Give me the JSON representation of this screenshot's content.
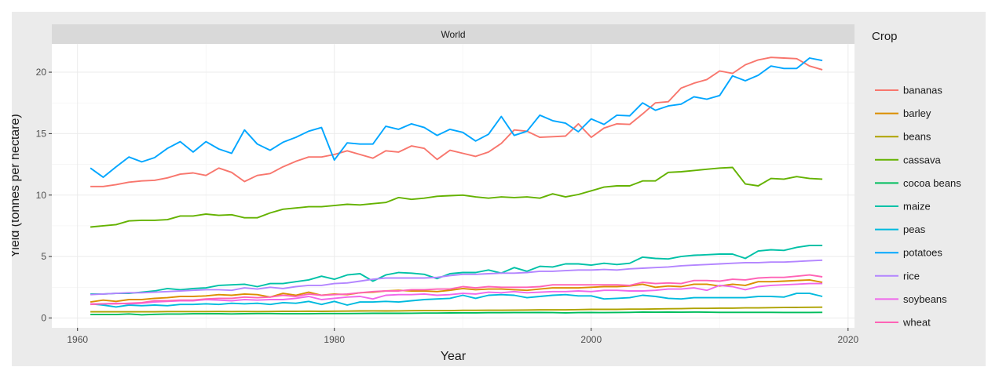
{
  "chart_data": {
    "type": "line",
    "facet_label": "World",
    "xlabel": "Year",
    "ylabel": "Yield (tonnes per hectare)",
    "xlim": [
      1958,
      2020.5
    ],
    "ylim": [
      -0.8,
      22.3
    ],
    "x_ticks": [
      1960,
      1980,
      2000,
      2020
    ],
    "y_ticks": [
      0,
      5,
      10,
      15,
      20
    ],
    "grid": true,
    "legend_title": "Crop",
    "legend_position": "right",
    "x": [
      1961,
      1962,
      1963,
      1964,
      1965,
      1966,
      1967,
      1968,
      1969,
      1970,
      1971,
      1972,
      1973,
      1974,
      1975,
      1976,
      1977,
      1978,
      1979,
      1980,
      1981,
      1982,
      1983,
      1984,
      1985,
      1986,
      1987,
      1988,
      1989,
      1990,
      1991,
      1992,
      1993,
      1994,
      1995,
      1996,
      1997,
      1998,
      1999,
      2000,
      2001,
      2002,
      2003,
      2004,
      2005,
      2006,
      2007,
      2008,
      2009,
      2010,
      2011,
      2012,
      2013,
      2014,
      2015,
      2016,
      2017,
      2018
    ],
    "series": [
      {
        "name": "bananas",
        "color": "#F8766D",
        "values": [
          10.7,
          10.7,
          10.85,
          11.05,
          11.15,
          11.2,
          11.4,
          11.7,
          11.8,
          11.6,
          12.2,
          11.85,
          11.1,
          11.6,
          11.75,
          12.3,
          12.75,
          13.1,
          13.1,
          13.3,
          13.6,
          13.3,
          13.0,
          13.6,
          13.5,
          14.0,
          13.8,
          12.9,
          13.65,
          13.4,
          13.15,
          13.5,
          14.2,
          15.3,
          15.2,
          14.7,
          14.75,
          14.8,
          15.8,
          14.7,
          15.45,
          15.8,
          15.75,
          16.6,
          17.5,
          17.6,
          18.7,
          19.1,
          19.4,
          20.1,
          19.9,
          20.6,
          21.0,
          21.2,
          21.15,
          21.1,
          20.5,
          20.2
        ]
      },
      {
        "name": "barley",
        "color": "#DB8E00",
        "values": [
          1.3,
          1.45,
          1.35,
          1.5,
          1.5,
          1.6,
          1.65,
          1.75,
          1.75,
          1.8,
          1.9,
          1.85,
          1.95,
          1.9,
          1.7,
          2.0,
          1.85,
          2.1,
          1.85,
          1.95,
          1.9,
          2.05,
          2.1,
          2.2,
          2.25,
          2.2,
          2.2,
          2.15,
          2.25,
          2.4,
          2.3,
          2.35,
          2.35,
          2.3,
          2.25,
          2.35,
          2.45,
          2.45,
          2.45,
          2.5,
          2.55,
          2.55,
          2.6,
          2.75,
          2.5,
          2.6,
          2.55,
          2.75,
          2.75,
          2.6,
          2.75,
          2.65,
          2.95,
          2.95,
          3.0,
          3.05,
          3.1,
          2.9
        ]
      },
      {
        "name": "beans",
        "color": "#AEA200",
        "values": [
          0.5,
          0.5,
          0.5,
          0.5,
          0.5,
          0.5,
          0.52,
          0.52,
          0.52,
          0.52,
          0.53,
          0.52,
          0.53,
          0.52,
          0.53,
          0.54,
          0.54,
          0.55,
          0.54,
          0.55,
          0.56,
          0.57,
          0.58,
          0.57,
          0.58,
          0.59,
          0.6,
          0.6,
          0.6,
          0.62,
          0.62,
          0.63,
          0.63,
          0.64,
          0.65,
          0.66,
          0.66,
          0.66,
          0.68,
          0.7,
          0.7,
          0.7,
          0.72,
          0.72,
          0.74,
          0.75,
          0.76,
          0.78,
          0.78,
          0.8,
          0.8,
          0.82,
          0.82,
          0.84,
          0.85,
          0.86,
          0.87,
          0.88
        ]
      },
      {
        "name": "cassava",
        "color": "#64B200",
        "values": [
          7.4,
          7.5,
          7.6,
          7.9,
          7.95,
          7.95,
          8.0,
          8.3,
          8.3,
          8.45,
          8.35,
          8.4,
          8.15,
          8.15,
          8.55,
          8.85,
          8.95,
          9.05,
          9.05,
          9.15,
          9.25,
          9.2,
          9.3,
          9.4,
          9.8,
          9.65,
          9.75,
          9.9,
          9.95,
          10.0,
          9.85,
          9.75,
          9.85,
          9.8,
          9.85,
          9.75,
          10.1,
          9.85,
          10.05,
          10.35,
          10.65,
          10.75,
          10.75,
          11.15,
          11.15,
          11.85,
          11.9,
          12.0,
          12.1,
          12.2,
          12.25,
          10.9,
          10.75,
          11.35,
          11.3,
          11.5,
          11.35,
          11.3
        ]
      },
      {
        "name": "cocoa beans",
        "color": "#00BD5C",
        "values": [
          0.28,
          0.28,
          0.28,
          0.33,
          0.26,
          0.3,
          0.32,
          0.32,
          0.34,
          0.34,
          0.35,
          0.33,
          0.35,
          0.36,
          0.36,
          0.34,
          0.34,
          0.34,
          0.36,
          0.36,
          0.36,
          0.37,
          0.38,
          0.38,
          0.38,
          0.39,
          0.4,
          0.4,
          0.41,
          0.42,
          0.42,
          0.43,
          0.43,
          0.44,
          0.44,
          0.45,
          0.44,
          0.42,
          0.44,
          0.45,
          0.44,
          0.45,
          0.46,
          0.48,
          0.47,
          0.48,
          0.47,
          0.48,
          0.47,
          0.46,
          0.46,
          0.46,
          0.46,
          0.46,
          0.45,
          0.45,
          0.45,
          0.46
        ]
      },
      {
        "name": "maize",
        "color": "#00C1A7",
        "values": [
          1.95,
          1.95,
          2.0,
          2.0,
          2.1,
          2.2,
          2.4,
          2.3,
          2.4,
          2.45,
          2.65,
          2.7,
          2.75,
          2.55,
          2.8,
          2.8,
          2.95,
          3.1,
          3.4,
          3.15,
          3.5,
          3.6,
          3.0,
          3.5,
          3.7,
          3.65,
          3.55,
          3.2,
          3.6,
          3.7,
          3.7,
          3.9,
          3.65,
          4.1,
          3.8,
          4.2,
          4.15,
          4.4,
          4.4,
          4.3,
          4.45,
          4.35,
          4.45,
          4.95,
          4.85,
          4.8,
          5.0,
          5.1,
          5.15,
          5.2,
          5.2,
          4.85,
          5.45,
          5.55,
          5.5,
          5.75,
          5.9,
          5.9
        ]
      },
      {
        "name": "peas",
        "color": "#00BADE",
        "values": [
          1.15,
          1.05,
          0.9,
          1.05,
          1.0,
          1.05,
          1.0,
          1.1,
          1.1,
          1.15,
          1.1,
          1.2,
          1.15,
          1.2,
          1.1,
          1.25,
          1.2,
          1.35,
          1.1,
          1.35,
          1.05,
          1.3,
          1.3,
          1.35,
          1.3,
          1.4,
          1.5,
          1.55,
          1.6,
          1.85,
          1.6,
          1.85,
          1.9,
          1.85,
          1.65,
          1.75,
          1.85,
          1.9,
          1.8,
          1.8,
          1.55,
          1.6,
          1.65,
          1.85,
          1.75,
          1.6,
          1.55,
          1.65,
          1.65,
          1.65,
          1.65,
          1.65,
          1.75,
          1.75,
          1.7,
          2.0,
          2.0,
          1.75
        ]
      },
      {
        "name": "potatoes",
        "color": "#00A6FF",
        "values": [
          12.2,
          11.45,
          12.3,
          13.1,
          12.7,
          13.05,
          13.8,
          14.35,
          13.5,
          14.35,
          13.75,
          13.4,
          15.3,
          14.15,
          13.65,
          14.3,
          14.7,
          15.2,
          15.5,
          12.85,
          14.25,
          14.15,
          14.15,
          15.6,
          15.35,
          15.8,
          15.5,
          14.85,
          15.35,
          15.1,
          14.4,
          14.95,
          16.4,
          14.85,
          15.2,
          16.5,
          16.05,
          15.85,
          15.15,
          16.2,
          15.75,
          16.5,
          16.45,
          17.5,
          16.9,
          17.25,
          17.4,
          18.0,
          17.8,
          18.1,
          19.7,
          19.3,
          19.75,
          20.5,
          20.3,
          20.3,
          21.15,
          20.95
        ]
      },
      {
        "name": "rice",
        "color": "#B385FF",
        "values": [
          1.9,
          1.95,
          2.0,
          2.05,
          2.05,
          2.1,
          2.15,
          2.2,
          2.25,
          2.3,
          2.3,
          2.25,
          2.45,
          2.35,
          2.5,
          2.4,
          2.55,
          2.65,
          2.65,
          2.8,
          2.85,
          3.0,
          3.15,
          3.25,
          3.25,
          3.25,
          3.25,
          3.3,
          3.45,
          3.55,
          3.55,
          3.6,
          3.65,
          3.65,
          3.7,
          3.8,
          3.8,
          3.85,
          3.9,
          3.9,
          3.95,
          3.9,
          4.0,
          4.05,
          4.1,
          4.15,
          4.25,
          4.3,
          4.35,
          4.4,
          4.45,
          4.5,
          4.5,
          4.55,
          4.55,
          4.6,
          4.65,
          4.7
        ]
      },
      {
        "name": "soybeans",
        "color": "#EF67EB",
        "values": [
          1.15,
          1.15,
          1.2,
          1.15,
          1.2,
          1.3,
          1.35,
          1.4,
          1.4,
          1.5,
          1.45,
          1.4,
          1.5,
          1.45,
          1.5,
          1.5,
          1.6,
          1.75,
          1.5,
          1.6,
          1.7,
          1.75,
          1.55,
          1.85,
          1.9,
          1.9,
          1.95,
          1.85,
          1.9,
          2.0,
          1.95,
          2.1,
          2.05,
          2.15,
          2.05,
          2.1,
          2.15,
          2.15,
          2.2,
          2.15,
          2.25,
          2.25,
          2.2,
          2.2,
          2.25,
          2.35,
          2.35,
          2.45,
          2.25,
          2.65,
          2.55,
          2.3,
          2.55,
          2.65,
          2.7,
          2.75,
          2.8,
          2.8
        ]
      },
      {
        "name": "wheat",
        "color": "#FF63B6",
        "values": [
          1.1,
          1.15,
          1.15,
          1.2,
          1.25,
          1.4,
          1.4,
          1.45,
          1.45,
          1.55,
          1.6,
          1.6,
          1.7,
          1.65,
          1.7,
          1.85,
          1.75,
          1.95,
          1.85,
          1.9,
          1.95,
          2.05,
          2.15,
          2.2,
          2.2,
          2.3,
          2.3,
          2.35,
          2.35,
          2.55,
          2.45,
          2.55,
          2.5,
          2.5,
          2.5,
          2.55,
          2.7,
          2.7,
          2.7,
          2.7,
          2.7,
          2.7,
          2.65,
          2.9,
          2.8,
          2.85,
          2.8,
          3.05,
          3.05,
          3.0,
          3.15,
          3.1,
          3.25,
          3.3,
          3.3,
          3.4,
          3.5,
          3.35
        ]
      }
    ]
  }
}
